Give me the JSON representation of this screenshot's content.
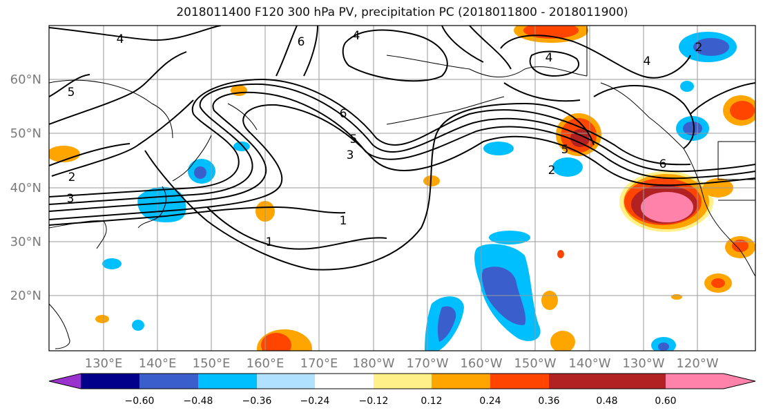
{
  "title": "2018011400 F120 300 hPa PV, precipitation PC (2018011800 - 2018011900)",
  "lat_labels": [
    "60°N",
    "50°N",
    "40°N",
    "30°N",
    "20°N"
  ],
  "lon_labels": [
    "130°E",
    "140°E",
    "150°E",
    "160°E",
    "170°E",
    "180°W",
    "170°W",
    "160°W",
    "150°W",
    "140°W",
    "130°W",
    "120°W"
  ],
  "contour_labels": [
    "4",
    "5",
    "6",
    "4",
    "4",
    "6",
    "5",
    "3",
    "2",
    "3",
    "2",
    "5",
    "4",
    "2",
    "6",
    "1",
    "1"
  ],
  "colorbar": {
    "tick_labels": [
      "−0.60",
      "−0.48",
      "−0.36",
      "−0.24",
      "−0.12",
      "0.12",
      "0.24",
      "0.36",
      "0.48",
      "0.60"
    ],
    "colors": [
      "#9a32cd",
      "#00008b",
      "#3a5fcd",
      "#00bfff",
      "#b0e2ff",
      "#ffffff",
      "#fff08a",
      "#ffa500",
      "#ff4500",
      "#b22222",
      "#ff82ab"
    ]
  }
}
